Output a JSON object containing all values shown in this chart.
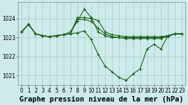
{
  "title": "Graphe pression niveau de la mer (hPa)",
  "background_color": "#ceeaea",
  "grid_color": "#a8d0d0",
  "line_color": "#1a5e1a",
  "xlim": [
    -0.5,
    23.5
  ],
  "ylim": [
    1020.5,
    1024.85
  ],
  "yticks": [
    1021,
    1022,
    1023,
    1024
  ],
  "xticks": [
    0,
    1,
    2,
    3,
    4,
    5,
    6,
    7,
    8,
    9,
    10,
    11,
    12,
    13,
    14,
    15,
    16,
    17,
    18,
    19,
    20,
    21,
    22,
    23
  ],
  "series": [
    {
      "x": [
        0,
        1,
        2,
        3,
        4,
        5,
        6,
        7,
        8,
        9,
        10,
        11,
        12,
        13,
        14,
        15,
        16,
        17,
        18,
        19,
        20,
        21,
        22,
        23
      ],
      "y": [
        1023.3,
        1023.7,
        1023.2,
        1023.1,
        1023.05,
        1023.1,
        1023.15,
        1023.2,
        1023.25,
        1023.35,
        1022.9,
        1022.1,
        1021.5,
        1021.2,
        1020.9,
        1020.75,
        1021.1,
        1021.35,
        1022.4,
        1022.65,
        1022.4,
        1023.1,
        1023.2,
        1023.2
      ]
    },
    {
      "x": [
        0,
        1,
        2,
        3,
        4,
        5,
        6,
        7,
        8,
        9,
        10,
        11,
        12,
        13,
        14,
        15,
        16,
        17,
        18,
        19,
        20,
        21,
        22,
        23
      ],
      "y": [
        1023.3,
        1023.7,
        1023.2,
        1023.1,
        1023.05,
        1023.1,
        1023.15,
        1023.3,
        1023.85,
        1024.5,
        1024.05,
        1023.3,
        1023.1,
        1023.0,
        1023.0,
        1023.0,
        1023.0,
        1023.0,
        1023.0,
        1023.0,
        1023.0,
        1023.1,
        1023.2,
        1023.2
      ]
    },
    {
      "x": [
        0,
        1,
        2,
        3,
        4,
        5,
        6,
        7,
        8,
        9,
        10,
        11,
        12,
        13,
        14,
        15,
        16,
        17,
        18,
        19,
        20,
        21,
        22,
        23
      ],
      "y": [
        1023.3,
        1023.7,
        1023.2,
        1023.1,
        1023.05,
        1023.1,
        1023.15,
        1023.2,
        1024.05,
        1024.05,
        1024.0,
        1023.9,
        1023.3,
        1023.15,
        1023.1,
        1023.05,
        1023.05,
        1023.05,
        1023.05,
        1023.05,
        1023.05,
        1023.1,
        1023.2,
        1023.2
      ]
    },
    {
      "x": [
        0,
        1,
        2,
        3,
        4,
        5,
        6,
        7,
        8,
        9,
        10,
        11,
        12,
        13,
        14,
        15,
        16,
        17,
        18,
        19,
        20,
        21,
        22,
        23
      ],
      "y": [
        1023.3,
        1023.7,
        1023.2,
        1023.1,
        1023.05,
        1023.1,
        1023.15,
        1023.2,
        1023.95,
        1023.95,
        1023.85,
        1023.5,
        1023.2,
        1023.05,
        1023.0,
        1022.95,
        1022.95,
        1022.95,
        1022.95,
        1022.95,
        1022.95,
        1023.05,
        1023.2,
        1023.2
      ]
    }
  ],
  "title_fontsize": 7.5,
  "tick_fontsize": 5.5
}
